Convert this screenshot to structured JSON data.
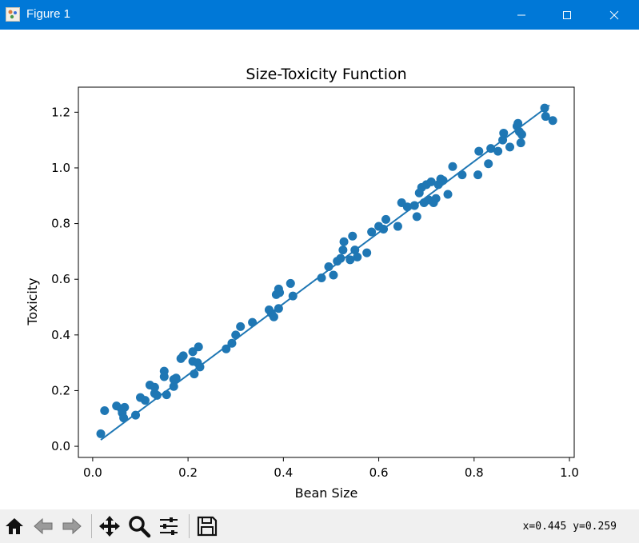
{
  "window": {
    "title": "Figure 1"
  },
  "colors": {
    "titlebar": "#0078d7",
    "series": "#1f77b4",
    "toolbar_bg": "#f0f0f0"
  },
  "toolbar": {
    "buttons": [
      "home-icon",
      "back-arrow-icon",
      "forward-arrow-icon",
      "pan-move-icon",
      "zoom-magnifier-icon",
      "configure-subplots-icon",
      "save-floppy-icon"
    ],
    "coords": "x=0.445 y=0.259"
  },
  "chart_data": {
    "type": "scatter",
    "title": "Size-Toxicity Function",
    "xlabel": "Bean Size",
    "ylabel": "Toxicity",
    "xlim": [
      -0.03,
      1.01
    ],
    "ylim": [
      -0.04,
      1.29
    ],
    "xticks": [
      "0.0",
      "0.2",
      "0.4",
      "0.6",
      "0.8",
      "1.0"
    ],
    "yticks": [
      "0.0",
      "0.2",
      "0.4",
      "0.6",
      "0.8",
      "1.0",
      "1.2"
    ],
    "grid": false,
    "series": [
      {
        "kind": "scatter",
        "points": [
          [
            0.017,
            0.045
          ],
          [
            0.025,
            0.128
          ],
          [
            0.05,
            0.145
          ],
          [
            0.06,
            0.135
          ],
          [
            0.062,
            0.12
          ],
          [
            0.065,
            0.102
          ],
          [
            0.067,
            0.14
          ],
          [
            0.09,
            0.112
          ],
          [
            0.1,
            0.175
          ],
          [
            0.11,
            0.165
          ],
          [
            0.12,
            0.22
          ],
          [
            0.13,
            0.212
          ],
          [
            0.13,
            0.19
          ],
          [
            0.135,
            0.183
          ],
          [
            0.15,
            0.27
          ],
          [
            0.15,
            0.25
          ],
          [
            0.155,
            0.185
          ],
          [
            0.17,
            0.215
          ],
          [
            0.17,
            0.24
          ],
          [
            0.175,
            0.245
          ],
          [
            0.185,
            0.315
          ],
          [
            0.19,
            0.325
          ],
          [
            0.21,
            0.34
          ],
          [
            0.21,
            0.305
          ],
          [
            0.213,
            0.26
          ],
          [
            0.22,
            0.3
          ],
          [
            0.222,
            0.357
          ],
          [
            0.225,
            0.285
          ],
          [
            0.28,
            0.35
          ],
          [
            0.292,
            0.37
          ],
          [
            0.3,
            0.4
          ],
          [
            0.31,
            0.43
          ],
          [
            0.335,
            0.445
          ],
          [
            0.37,
            0.49
          ],
          [
            0.375,
            0.478
          ],
          [
            0.38,
            0.465
          ],
          [
            0.385,
            0.545
          ],
          [
            0.39,
            0.565
          ],
          [
            0.39,
            0.495
          ],
          [
            0.392,
            0.552
          ],
          [
            0.415,
            0.585
          ],
          [
            0.42,
            0.54
          ],
          [
            0.48,
            0.605
          ],
          [
            0.495,
            0.645
          ],
          [
            0.505,
            0.615
          ],
          [
            0.513,
            0.665
          ],
          [
            0.52,
            0.675
          ],
          [
            0.525,
            0.705
          ],
          [
            0.527,
            0.735
          ],
          [
            0.54,
            0.67
          ],
          [
            0.545,
            0.755
          ],
          [
            0.55,
            0.705
          ],
          [
            0.555,
            0.68
          ],
          [
            0.575,
            0.695
          ],
          [
            0.585,
            0.77
          ],
          [
            0.6,
            0.79
          ],
          [
            0.61,
            0.78
          ],
          [
            0.615,
            0.815
          ],
          [
            0.64,
            0.79
          ],
          [
            0.648,
            0.875
          ],
          [
            0.66,
            0.86
          ],
          [
            0.675,
            0.865
          ],
          [
            0.68,
            0.825
          ],
          [
            0.685,
            0.91
          ],
          [
            0.69,
            0.93
          ],
          [
            0.695,
            0.875
          ],
          [
            0.7,
            0.94
          ],
          [
            0.705,
            0.885
          ],
          [
            0.71,
            0.95
          ],
          [
            0.715,
            0.875
          ],
          [
            0.72,
            0.89
          ],
          [
            0.725,
            0.94
          ],
          [
            0.73,
            0.96
          ],
          [
            0.735,
            0.955
          ],
          [
            0.745,
            0.905
          ],
          [
            0.755,
            1.005
          ],
          [
            0.775,
            0.975
          ],
          [
            0.808,
            0.975
          ],
          [
            0.81,
            1.06
          ],
          [
            0.83,
            1.015
          ],
          [
            0.835,
            1.07
          ],
          [
            0.85,
            1.06
          ],
          [
            0.86,
            1.1
          ],
          [
            0.862,
            1.125
          ],
          [
            0.875,
            1.075
          ],
          [
            0.89,
            1.15
          ],
          [
            0.892,
            1.16
          ],
          [
            0.895,
            1.13
          ],
          [
            0.898,
            1.09
          ],
          [
            0.9,
            1.12
          ],
          [
            0.948,
            1.215
          ],
          [
            0.95,
            1.185
          ],
          [
            0.965,
            1.17
          ]
        ]
      },
      {
        "kind": "line",
        "points": [
          [
            0.017,
            0.023
          ],
          [
            0.958,
            1.225
          ]
        ]
      }
    ]
  }
}
